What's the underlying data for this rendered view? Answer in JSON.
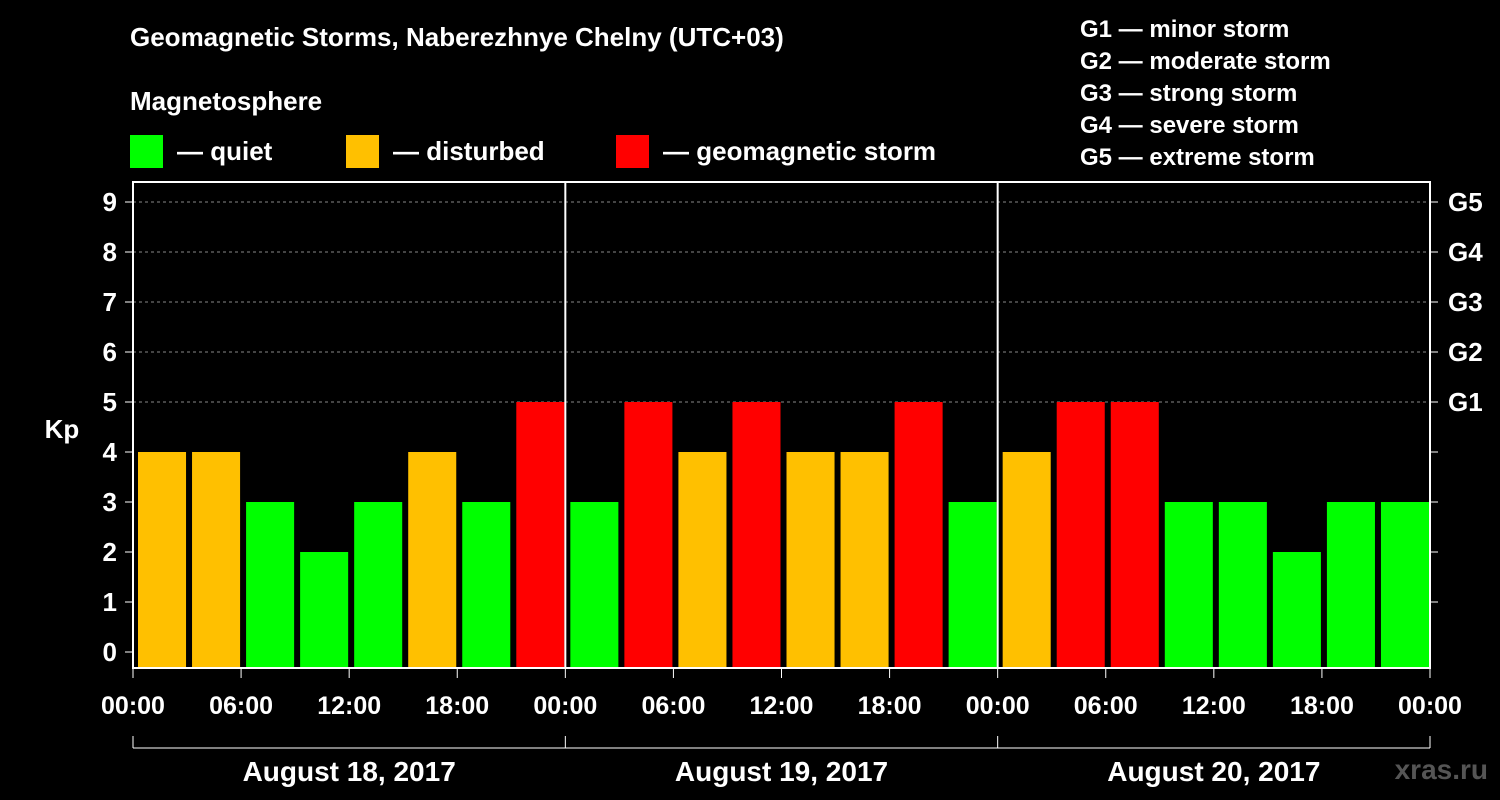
{
  "title": "Geomagnetic Storms, Naberezhnye Chelny (UTC+03)",
  "magnetosphere_label": "Magnetosphere",
  "legend": [
    {
      "label": "— quiet",
      "color": "#00ff00"
    },
    {
      "label": "— disturbed",
      "color": "#ffc000"
    },
    {
      "label": "— geomagnetic storm",
      "color": "#ff0000"
    }
  ],
  "g_scale": [
    "G1 — minor storm",
    "G2 — moderate storm",
    "G3 — strong storm",
    "G4 — severe storm",
    "G5 — extreme storm"
  ],
  "watermark": "xras.ru",
  "colors": {
    "quiet": "#00ff00",
    "disturbed": "#ffc000",
    "storm": "#ff0000",
    "background": "#000000",
    "axis": "#ffffff"
  },
  "chart_data": {
    "type": "bar",
    "ylabel": "Kp",
    "ylim": [
      0,
      9
    ],
    "yticks": [
      0,
      1,
      2,
      3,
      4,
      5,
      6,
      7,
      8,
      9
    ],
    "right_axis_labels": [
      {
        "kp": 5,
        "label": "G1"
      },
      {
        "kp": 6,
        "label": "G2"
      },
      {
        "kp": 7,
        "label": "G3"
      },
      {
        "kp": 8,
        "label": "G4"
      },
      {
        "kp": 9,
        "label": "G5"
      }
    ],
    "grid": "dashed horizontal",
    "x_tick_labels": [
      "00:00",
      "06:00",
      "12:00",
      "18:00",
      "00:00",
      "06:00",
      "12:00",
      "18:00",
      "00:00",
      "06:00",
      "12:00",
      "18:00",
      "00:00"
    ],
    "days": [
      {
        "label": "August 18, 2017",
        "values": [
          4,
          4,
          3,
          2,
          3,
          4,
          3,
          5
        ]
      },
      {
        "label": "August 19, 2017",
        "values": [
          3,
          5,
          4,
          5,
          4,
          4,
          5,
          3
        ]
      },
      {
        "label": "August 20, 2017",
        "values": [
          4,
          5,
          5,
          3,
          3,
          2,
          3,
          3
        ]
      }
    ]
  }
}
